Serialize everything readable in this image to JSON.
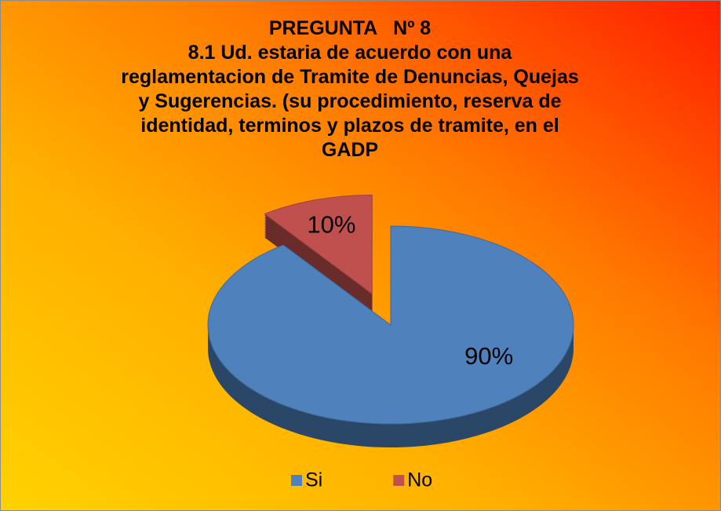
{
  "chart_data": {
    "type": "pie",
    "title": "PREGUNTA   Nº 8",
    "subtitle": "8.1 Ud. estaria de acuerdo con una reglamentacion de Tramite de Denuncias, Quejas y Sugerencias. (su procedimiento, reserva de identidad, terminos y plazos de tramite, en el GADP",
    "categories": [
      "Si",
      "No"
    ],
    "values": [
      90,
      10
    ],
    "value_labels": [
      "90%",
      "10%"
    ],
    "colors": [
      "#4f81bd",
      "#c0504d"
    ],
    "legend": "bottom"
  }
}
